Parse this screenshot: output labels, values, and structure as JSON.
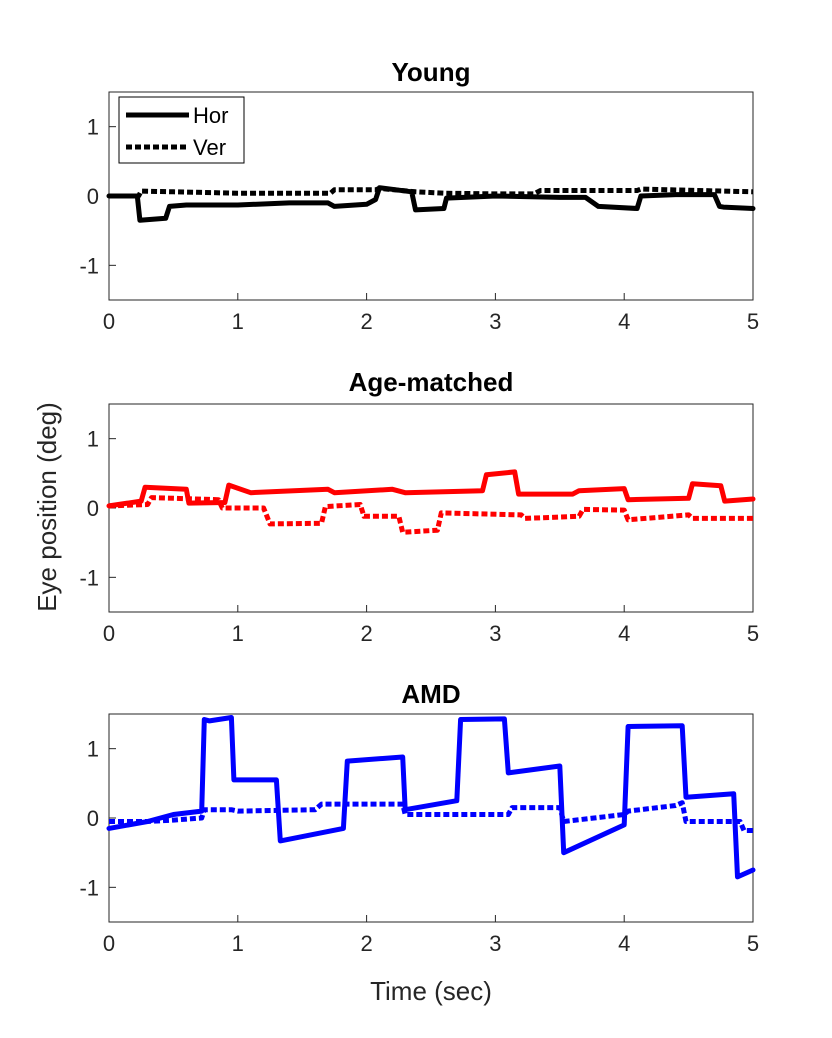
{
  "figure": {
    "xlabel": "Time (sec)",
    "ylabel": "Eye position (deg)"
  },
  "legend": {
    "entries": [
      {
        "label": "Hor",
        "style": "solid"
      },
      {
        "label": "Ver",
        "style": "dotted"
      }
    ]
  },
  "chart_data": [
    {
      "type": "line",
      "title": "Young",
      "color": "#000000",
      "xlim": [
        0,
        5
      ],
      "ylim": [
        -1.5,
        1.5
      ],
      "xticks": [
        "0",
        "1",
        "2",
        "3",
        "4",
        "5"
      ],
      "yticks": [
        "1",
        "0",
        "-1"
      ],
      "legend_location": "top-left",
      "series": [
        {
          "name": "Hor",
          "style": "solid",
          "x": [
            0,
            0.22,
            0.24,
            0.44,
            0.47,
            0.6,
            1.0,
            1.4,
            1.7,
            1.75,
            2.0,
            2.07,
            2.1,
            2.35,
            2.38,
            2.6,
            2.62,
            3.0,
            3.5,
            3.7,
            3.8,
            4.1,
            4.13,
            4.4,
            4.7,
            4.74,
            4.77,
            5.0
          ],
          "y": [
            0.0,
            0.0,
            -0.35,
            -0.32,
            -0.15,
            -0.13,
            -0.13,
            -0.1,
            -0.1,
            -0.15,
            -0.12,
            -0.05,
            0.12,
            0.06,
            -0.2,
            -0.18,
            -0.03,
            0.0,
            -0.02,
            -0.02,
            -0.15,
            -0.18,
            0.0,
            0.02,
            0.02,
            -0.15,
            -0.16,
            -0.18
          ]
        },
        {
          "name": "Ver",
          "style": "dotted",
          "x": [
            0,
            0.23,
            0.25,
            0.5,
            1.0,
            1.72,
            1.75,
            2.07,
            2.1,
            2.38,
            2.6,
            3.0,
            3.3,
            3.35,
            4.1,
            4.13,
            5.0
          ],
          "y": [
            0.0,
            0.0,
            0.07,
            0.06,
            0.04,
            0.04,
            0.09,
            0.09,
            0.11,
            0.06,
            0.04,
            0.03,
            0.03,
            0.08,
            0.08,
            0.1,
            0.06
          ]
        }
      ]
    },
    {
      "type": "line",
      "title": "Age-matched",
      "color": "#ff0000",
      "xlim": [
        0,
        5
      ],
      "ylim": [
        -1.5,
        1.5
      ],
      "xticks": [
        "0",
        "1",
        "2",
        "3",
        "4",
        "5"
      ],
      "yticks": [
        "1",
        "0",
        "-1"
      ],
      "series": [
        {
          "name": "Hor",
          "style": "solid",
          "x": [
            0,
            0.25,
            0.28,
            0.6,
            0.62,
            0.9,
            0.93,
            1.1,
            1.7,
            1.75,
            2.2,
            2.3,
            2.9,
            2.93,
            3.15,
            3.18,
            3.6,
            3.65,
            4.0,
            4.03,
            4.5,
            4.53,
            4.75,
            4.78,
            5.0
          ],
          "y": [
            0.03,
            0.1,
            0.3,
            0.27,
            0.07,
            0.08,
            0.33,
            0.22,
            0.27,
            0.22,
            0.27,
            0.22,
            0.25,
            0.48,
            0.52,
            0.2,
            0.2,
            0.25,
            0.28,
            0.12,
            0.14,
            0.35,
            0.32,
            0.1,
            0.13
          ]
        },
        {
          "name": "Ver",
          "style": "dotted",
          "x": [
            0,
            0.3,
            0.33,
            0.85,
            0.88,
            1.2,
            1.25,
            1.65,
            1.68,
            1.95,
            1.98,
            2.25,
            2.28,
            2.55,
            2.58,
            3.2,
            3.23,
            3.65,
            3.68,
            4.0,
            4.03,
            4.5,
            4.53,
            5.0
          ],
          "y": [
            0.03,
            0.05,
            0.15,
            0.12,
            0.0,
            0.0,
            -0.23,
            -0.22,
            0.02,
            0.05,
            -0.12,
            -0.12,
            -0.35,
            -0.32,
            -0.07,
            -0.1,
            -0.15,
            -0.12,
            -0.02,
            -0.03,
            -0.17,
            -0.1,
            -0.15,
            -0.15
          ]
        }
      ]
    },
    {
      "type": "line",
      "title": "AMD",
      "color": "#0000ff",
      "xlim": [
        0,
        5
      ],
      "ylim": [
        -1.5,
        1.5
      ],
      "xticks": [
        "0",
        "1",
        "2",
        "3",
        "4",
        "5"
      ],
      "yticks": [
        "1",
        "0",
        "-1"
      ],
      "series": [
        {
          "name": "Hor",
          "style": "solid",
          "x": [
            0,
            0.3,
            0.5,
            0.72,
            0.74,
            0.78,
            0.95,
            0.97,
            1.3,
            1.33,
            1.82,
            1.85,
            2.28,
            2.3,
            2.7,
            2.73,
            3.07,
            3.1,
            3.5,
            3.53,
            4.0,
            4.03,
            4.45,
            4.48,
            4.85,
            4.88,
            5.0
          ],
          "y": [
            -0.15,
            -0.05,
            0.05,
            0.1,
            1.42,
            1.4,
            1.45,
            0.55,
            0.55,
            -0.33,
            -0.15,
            0.82,
            0.88,
            0.12,
            0.25,
            1.42,
            1.43,
            0.65,
            0.75,
            -0.5,
            -0.1,
            1.32,
            1.33,
            0.3,
            0.35,
            -0.85,
            -0.75
          ]
        },
        {
          "name": "Ver",
          "style": "dotted",
          "x": [
            0,
            0.3,
            0.5,
            0.72,
            0.74,
            0.95,
            1.0,
            1.6,
            1.65,
            2.28,
            2.3,
            3.1,
            3.13,
            3.5,
            3.53,
            4.0,
            4.03,
            4.4,
            4.45,
            4.48,
            4.9,
            4.93,
            5.0
          ],
          "y": [
            -0.05,
            -0.05,
            -0.03,
            0.0,
            0.12,
            0.12,
            0.1,
            0.12,
            0.2,
            0.2,
            0.05,
            0.05,
            0.15,
            0.15,
            -0.05,
            0.05,
            0.1,
            0.18,
            0.22,
            -0.05,
            -0.05,
            -0.18,
            -0.18
          ]
        }
      ]
    }
  ]
}
